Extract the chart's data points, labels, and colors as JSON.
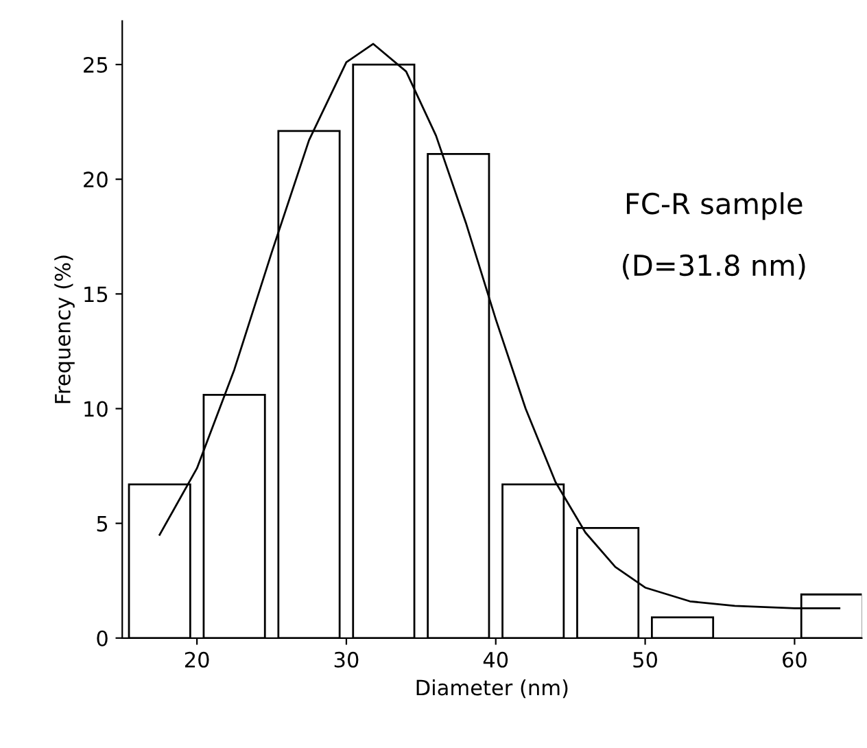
{
  "chart_data": {
    "type": "histogram",
    "xlabel": "Diameter (nm)",
    "ylabel": "Frequency (%)",
    "bins": [
      15,
      20,
      25,
      30,
      35,
      40,
      45,
      50,
      55,
      60,
      65
    ],
    "values": [
      6.7,
      10.6,
      22.1,
      25.0,
      21.1,
      6.7,
      4.8,
      0.9,
      0,
      1.9
    ],
    "color": "#ffffff",
    "series": [
      {
        "type": "line",
        "color": "#000000",
        "x": [
          17.5,
          20,
          22.5,
          25,
          27.5,
          30,
          31.8,
          34,
          36,
          38,
          40,
          42,
          44,
          46,
          48,
          50,
          53,
          56,
          60,
          63
        ],
        "values": [
          4.5,
          7.4,
          11.7,
          16.8,
          21.7,
          25.1,
          25.9,
          24.7,
          21.9,
          18.1,
          13.9,
          10.0,
          6.8,
          4.6,
          3.1,
          2.2,
          1.6,
          1.4,
          1.3,
          1.3
        ]
      }
    ],
    "xlim": [
      15,
      64.5
    ],
    "ylim": [
      0,
      26.9
    ],
    "xticks": [
      20,
      30,
      40,
      50,
      60
    ],
    "yticks": [
      0,
      5,
      10,
      15,
      20,
      25
    ],
    "annotations": [
      "FC-R sample",
      "(D=31.8 nm)"
    ],
    "grid": false,
    "legend": false
  }
}
